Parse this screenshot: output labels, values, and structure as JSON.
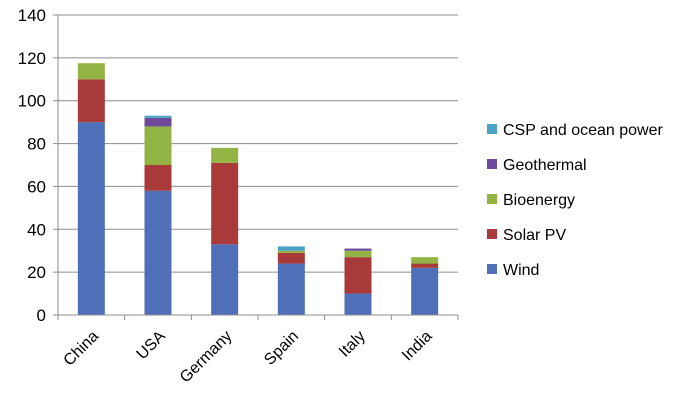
{
  "chart_data": {
    "type": "bar",
    "stacked": true,
    "title": "",
    "xlabel": "",
    "ylabel": "",
    "ylim": [
      0,
      140
    ],
    "yticks": [
      0,
      20,
      40,
      60,
      80,
      100,
      120,
      140
    ],
    "grid": true,
    "legend_position": "right",
    "categories": [
      "China",
      "USA",
      "Germany",
      "Spain",
      "Italy",
      "India"
    ],
    "series": [
      {
        "name": "Wind",
        "color": "#4f6fb8",
        "values": [
          90,
          58,
          33,
          24,
          10,
          22
        ]
      },
      {
        "name": "Solar PV",
        "color": "#a83b39",
        "values": [
          20,
          12,
          38,
          5,
          17,
          2
        ]
      },
      {
        "name": "Bioenergy",
        "color": "#93b445",
        "values": [
          7.5,
          18,
          7,
          1,
          3,
          3
        ]
      },
      {
        "name": "Geothermal",
        "color": "#6d4a9a",
        "values": [
          0,
          4,
          0,
          0,
          1,
          0
        ]
      },
      {
        "name": "CSP and ocean power",
        "color": "#4aa2c4",
        "values": [
          0,
          1,
          0,
          2,
          0,
          0
        ]
      }
    ]
  }
}
